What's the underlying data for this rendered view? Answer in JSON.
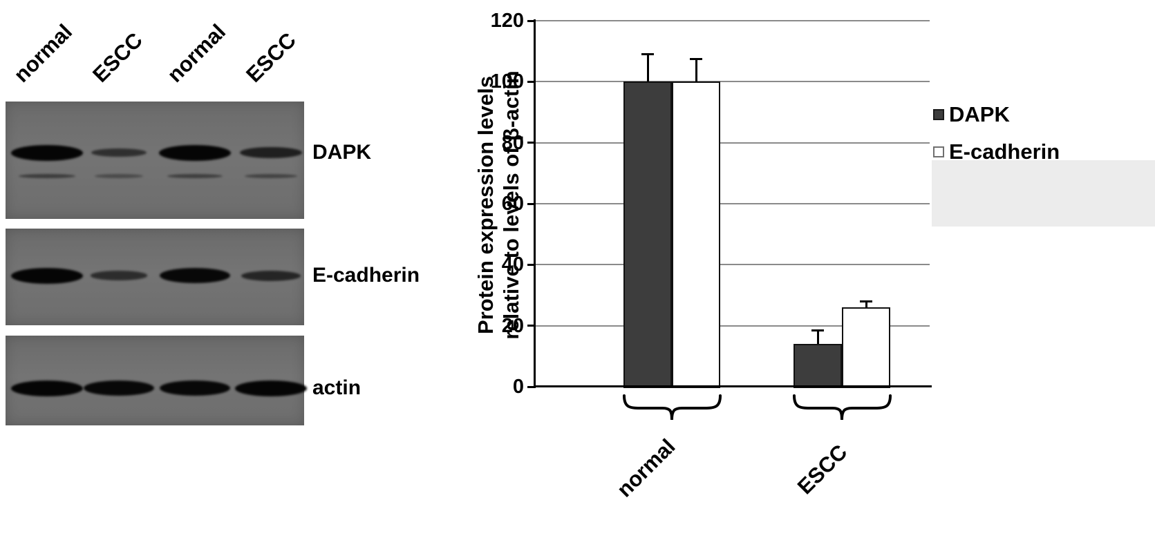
{
  "blot": {
    "lane_labels": [
      "normal",
      "ESCC",
      "normal",
      "ESCC"
    ],
    "rows": [
      {
        "label": "DAPK",
        "bands": [
          1.0,
          0.35,
          1.0,
          0.6
        ],
        "secondary": [
          0.55,
          0.25,
          0.5,
          0.4
        ]
      },
      {
        "label": "E-cadherin",
        "bands": [
          1.0,
          0.4,
          0.95,
          0.5
        ]
      },
      {
        "label": "actin",
        "bands": [
          1.0,
          0.95,
          0.95,
          1.0
        ]
      }
    ]
  },
  "chart_text": {
    "ylabel_line1": "Protein expression levels",
    "ylabel_line2": "relative to levels of β-actin"
  },
  "chart_data": {
    "type": "bar",
    "categories": [
      "normal",
      "ESCC"
    ],
    "series": [
      {
        "name": "DAPK",
        "values": [
          100,
          14
        ],
        "errors": [
          9,
          4.5
        ],
        "color": "#3d3d3d",
        "filled": true
      },
      {
        "name": "E-cadherin",
        "values": [
          100,
          26
        ],
        "errors": [
          7.5,
          2
        ],
        "color": "#ffffff",
        "filled": false
      }
    ],
    "title": "",
    "xlabel": "",
    "ylabel": "Protein expression levels relative to levels of β-actin",
    "ylim": [
      0,
      120
    ],
    "yticks": [
      0,
      20,
      40,
      60,
      80,
      100,
      120
    ],
    "grid": true,
    "legend_position": "right"
  }
}
